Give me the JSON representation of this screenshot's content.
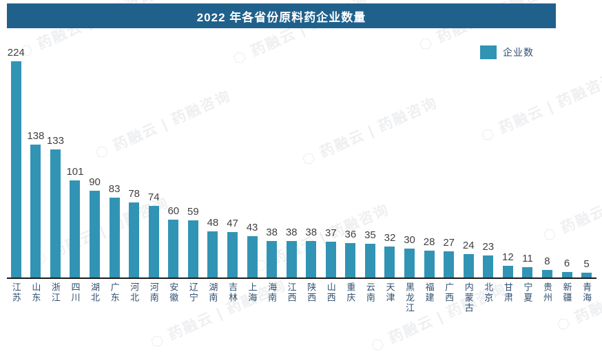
{
  "header": {
    "title": "2022 年各省份原料药企业数量"
  },
  "legend": {
    "label": "企业数"
  },
  "watermark": {
    "text": "药融云 | 药融咨询",
    "logo": "⬡"
  },
  "colors": {
    "title_bg": "#20618C",
    "title_text": "#FFFFFF",
    "bar": "#3294B5",
    "value_label": "#3F3F3F",
    "axis_label": "#2F4F6F",
    "axis_line": "#1A1A1A"
  },
  "chart_data": {
    "type": "bar",
    "title": "2022 年各省份原料药企业数量",
    "categories": [
      "江苏",
      "山东",
      "浙江",
      "四川",
      "湖北",
      "广东",
      "河北",
      "河南",
      "安徽",
      "辽宁",
      "湖南",
      "吉林",
      "上海",
      "海南",
      "江西",
      "陕西",
      "山西",
      "重庆",
      "云南",
      "天津",
      "黑龙江",
      "福建",
      "广西",
      "内蒙古",
      "北京",
      "甘肃",
      "宁夏",
      "贵州",
      "新疆",
      "青海"
    ],
    "series": [
      {
        "name": "企业数",
        "values": [
          224,
          138,
          133,
          101,
          90,
          83,
          78,
          74,
          60,
          59,
          48,
          47,
          43,
          38,
          38,
          38,
          37,
          36,
          35,
          32,
          30,
          28,
          27,
          24,
          23,
          12,
          11,
          8,
          6,
          5
        ]
      }
    ],
    "value_labels_shown": true,
    "xlabel": "",
    "ylabel": "",
    "ylim": [
      0,
      235
    ],
    "grid": false,
    "legend_position": "top-right",
    "bar_color": "#3294B5"
  }
}
